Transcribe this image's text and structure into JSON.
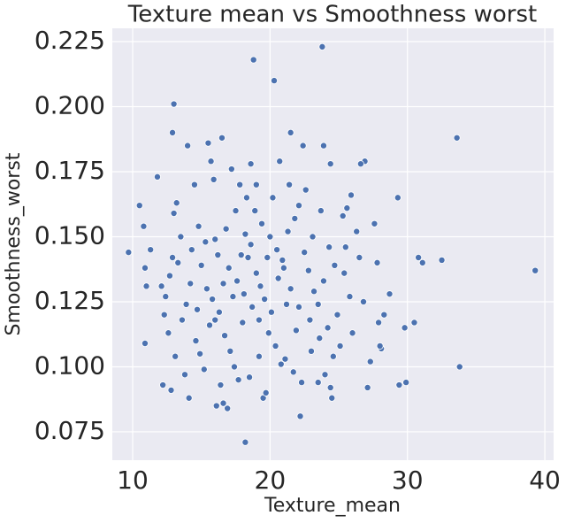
{
  "chart_data": {
    "type": "scatter",
    "title": "Texture mean vs Smoothness worst",
    "x_label": "Texture_mean",
    "y_label": "Smoothness_worst",
    "color": "#4c72b0",
    "grid": true,
    "xlim": [
      8.52,
      40.64
    ],
    "ylim": [
      0.0641,
      0.2301
    ],
    "xticks": [
      10,
      20,
      30,
      40
    ],
    "yticks": [
      0.075,
      {
        "value": 0.1,
        "label": "0.100"
      },
      0.125,
      {
        "value": 0.15,
        "label": "0.150"
      },
      0.175,
      {
        "value": 0.2,
        "label": "0.200"
      },
      0.225
    ],
    "x": [
      18.8,
      23.8,
      20.3,
      13.0,
      39.3,
      33.8,
      33.6,
      18.2,
      9.7,
      22.2,
      12.9,
      14.0,
      10.5,
      31.1,
      32.5,
      30.8,
      30.5,
      29.9,
      29.4,
      29.3,
      11.8,
      10.9,
      11.0,
      10.9,
      11.3,
      10.8,
      12.2,
      12.8,
      14.1,
      16.1,
      16.9,
      16.6,
      19.5,
      19.7,
      24.4,
      23.5,
      27.1,
      27.3,
      28.1,
      28.3,
      29.8,
      28.7,
      27.8,
      27.6,
      26.9,
      26.6,
      25.9,
      25.6,
      26.3,
      26.5,
      25.4,
      25.8,
      24.9,
      24.2,
      24.6,
      25.1,
      23.6,
      22.9,
      22.1,
      21.5,
      21.0,
      20.5,
      20.0,
      19.4,
      18.9,
      18.3,
      17.8,
      17.2,
      16.5,
      15.5,
      15.7,
      15.9,
      14.5,
      13.2,
      13.0,
      14.8,
      15.3,
      16.2,
      17.0,
      17.6,
      18.1,
      18.7,
      19.2,
      19.9,
      20.4,
      21.1,
      21.7,
      22.3,
      12.1,
      12.4,
      12.7,
      13.3,
      13.6,
      13.9,
      14.2,
      14.6,
      14.9,
      15.2,
      15.6,
      15.8,
      16.3,
      16.7,
      17.1,
      17.4,
      17.7,
      18.0,
      18.4,
      18.6,
      19.0,
      19.3,
      19.6,
      20.1,
      20.6,
      20.9,
      21.3,
      21.8,
      22.1,
      22.5,
      22.8,
      23.2,
      23.5,
      23.9,
      24.3,
      24.7,
      23.1,
      22.6,
      21.4,
      20.2,
      19.0,
      17.5,
      16.8,
      16.0,
      15.0,
      14.3,
      13.5,
      12.9,
      12.3,
      12.6,
      13.1,
      13.8,
      16.4,
      18.5,
      20.8,
      23.0,
      24.0,
      24.5,
      21.9,
      19.8,
      18.2,
      17.3,
      16.6,
      15.4,
      14.7,
      22.4,
      21.5,
      23.9,
      24.4,
      25.3,
      26.8,
      27.9,
      28.0,
      26.0,
      25.5,
      23.7,
      20.7,
      18.6,
      17.9,
      19.2,
      16.0,
      21.2
    ],
    "y": [
      0.218,
      0.223,
      0.21,
      0.201,
      0.137,
      0.1,
      0.188,
      0.071,
      0.144,
      0.081,
      0.19,
      0.185,
      0.162,
      0.14,
      0.141,
      0.142,
      0.117,
      0.094,
      0.093,
      0.165,
      0.173,
      0.109,
      0.131,
      0.138,
      0.145,
      0.154,
      0.093,
      0.091,
      0.088,
      0.085,
      0.084,
      0.086,
      0.088,
      0.09,
      0.092,
      0.094,
      0.092,
      0.102,
      0.107,
      0.12,
      0.115,
      0.128,
      0.14,
      0.155,
      0.179,
      0.178,
      0.166,
      0.161,
      0.152,
      0.142,
      0.136,
      0.127,
      0.12,
      0.115,
      0.104,
      0.108,
      0.111,
      0.118,
      0.123,
      0.13,
      0.138,
      0.145,
      0.15,
      0.155,
      0.16,
      0.165,
      0.17,
      0.176,
      0.188,
      0.186,
      0.179,
      0.172,
      0.17,
      0.163,
      0.159,
      0.154,
      0.148,
      0.143,
      0.138,
      0.133,
      0.128,
      0.123,
      0.118,
      0.113,
      0.108,
      0.103,
      0.098,
      0.094,
      0.131,
      0.127,
      0.135,
      0.14,
      0.118,
      0.124,
      0.132,
      0.11,
      0.105,
      0.099,
      0.116,
      0.126,
      0.121,
      0.112,
      0.106,
      0.1,
      0.095,
      0.117,
      0.142,
      0.147,
      0.136,
      0.131,
      0.126,
      0.121,
      0.134,
      0.141,
      0.152,
      0.157,
      0.162,
      0.144,
      0.137,
      0.129,
      0.124,
      0.133,
      0.146,
      0.139,
      0.15,
      0.168,
      0.17,
      0.165,
      0.17,
      0.16,
      0.153,
      0.149,
      0.139,
      0.145,
      0.15,
      0.142,
      0.12,
      0.113,
      0.104,
      0.097,
      0.093,
      0.096,
      0.101,
      0.106,
      0.097,
      0.088,
      0.114,
      0.142,
      0.151,
      0.127,
      0.132,
      0.13,
      0.122,
      0.185,
      0.19,
      0.185,
      0.178,
      0.158,
      0.125,
      0.117,
      0.108,
      0.113,
      0.146,
      0.16,
      0.179,
      0.178,
      0.143,
      0.104,
      0.118,
      0.124
    ]
  }
}
